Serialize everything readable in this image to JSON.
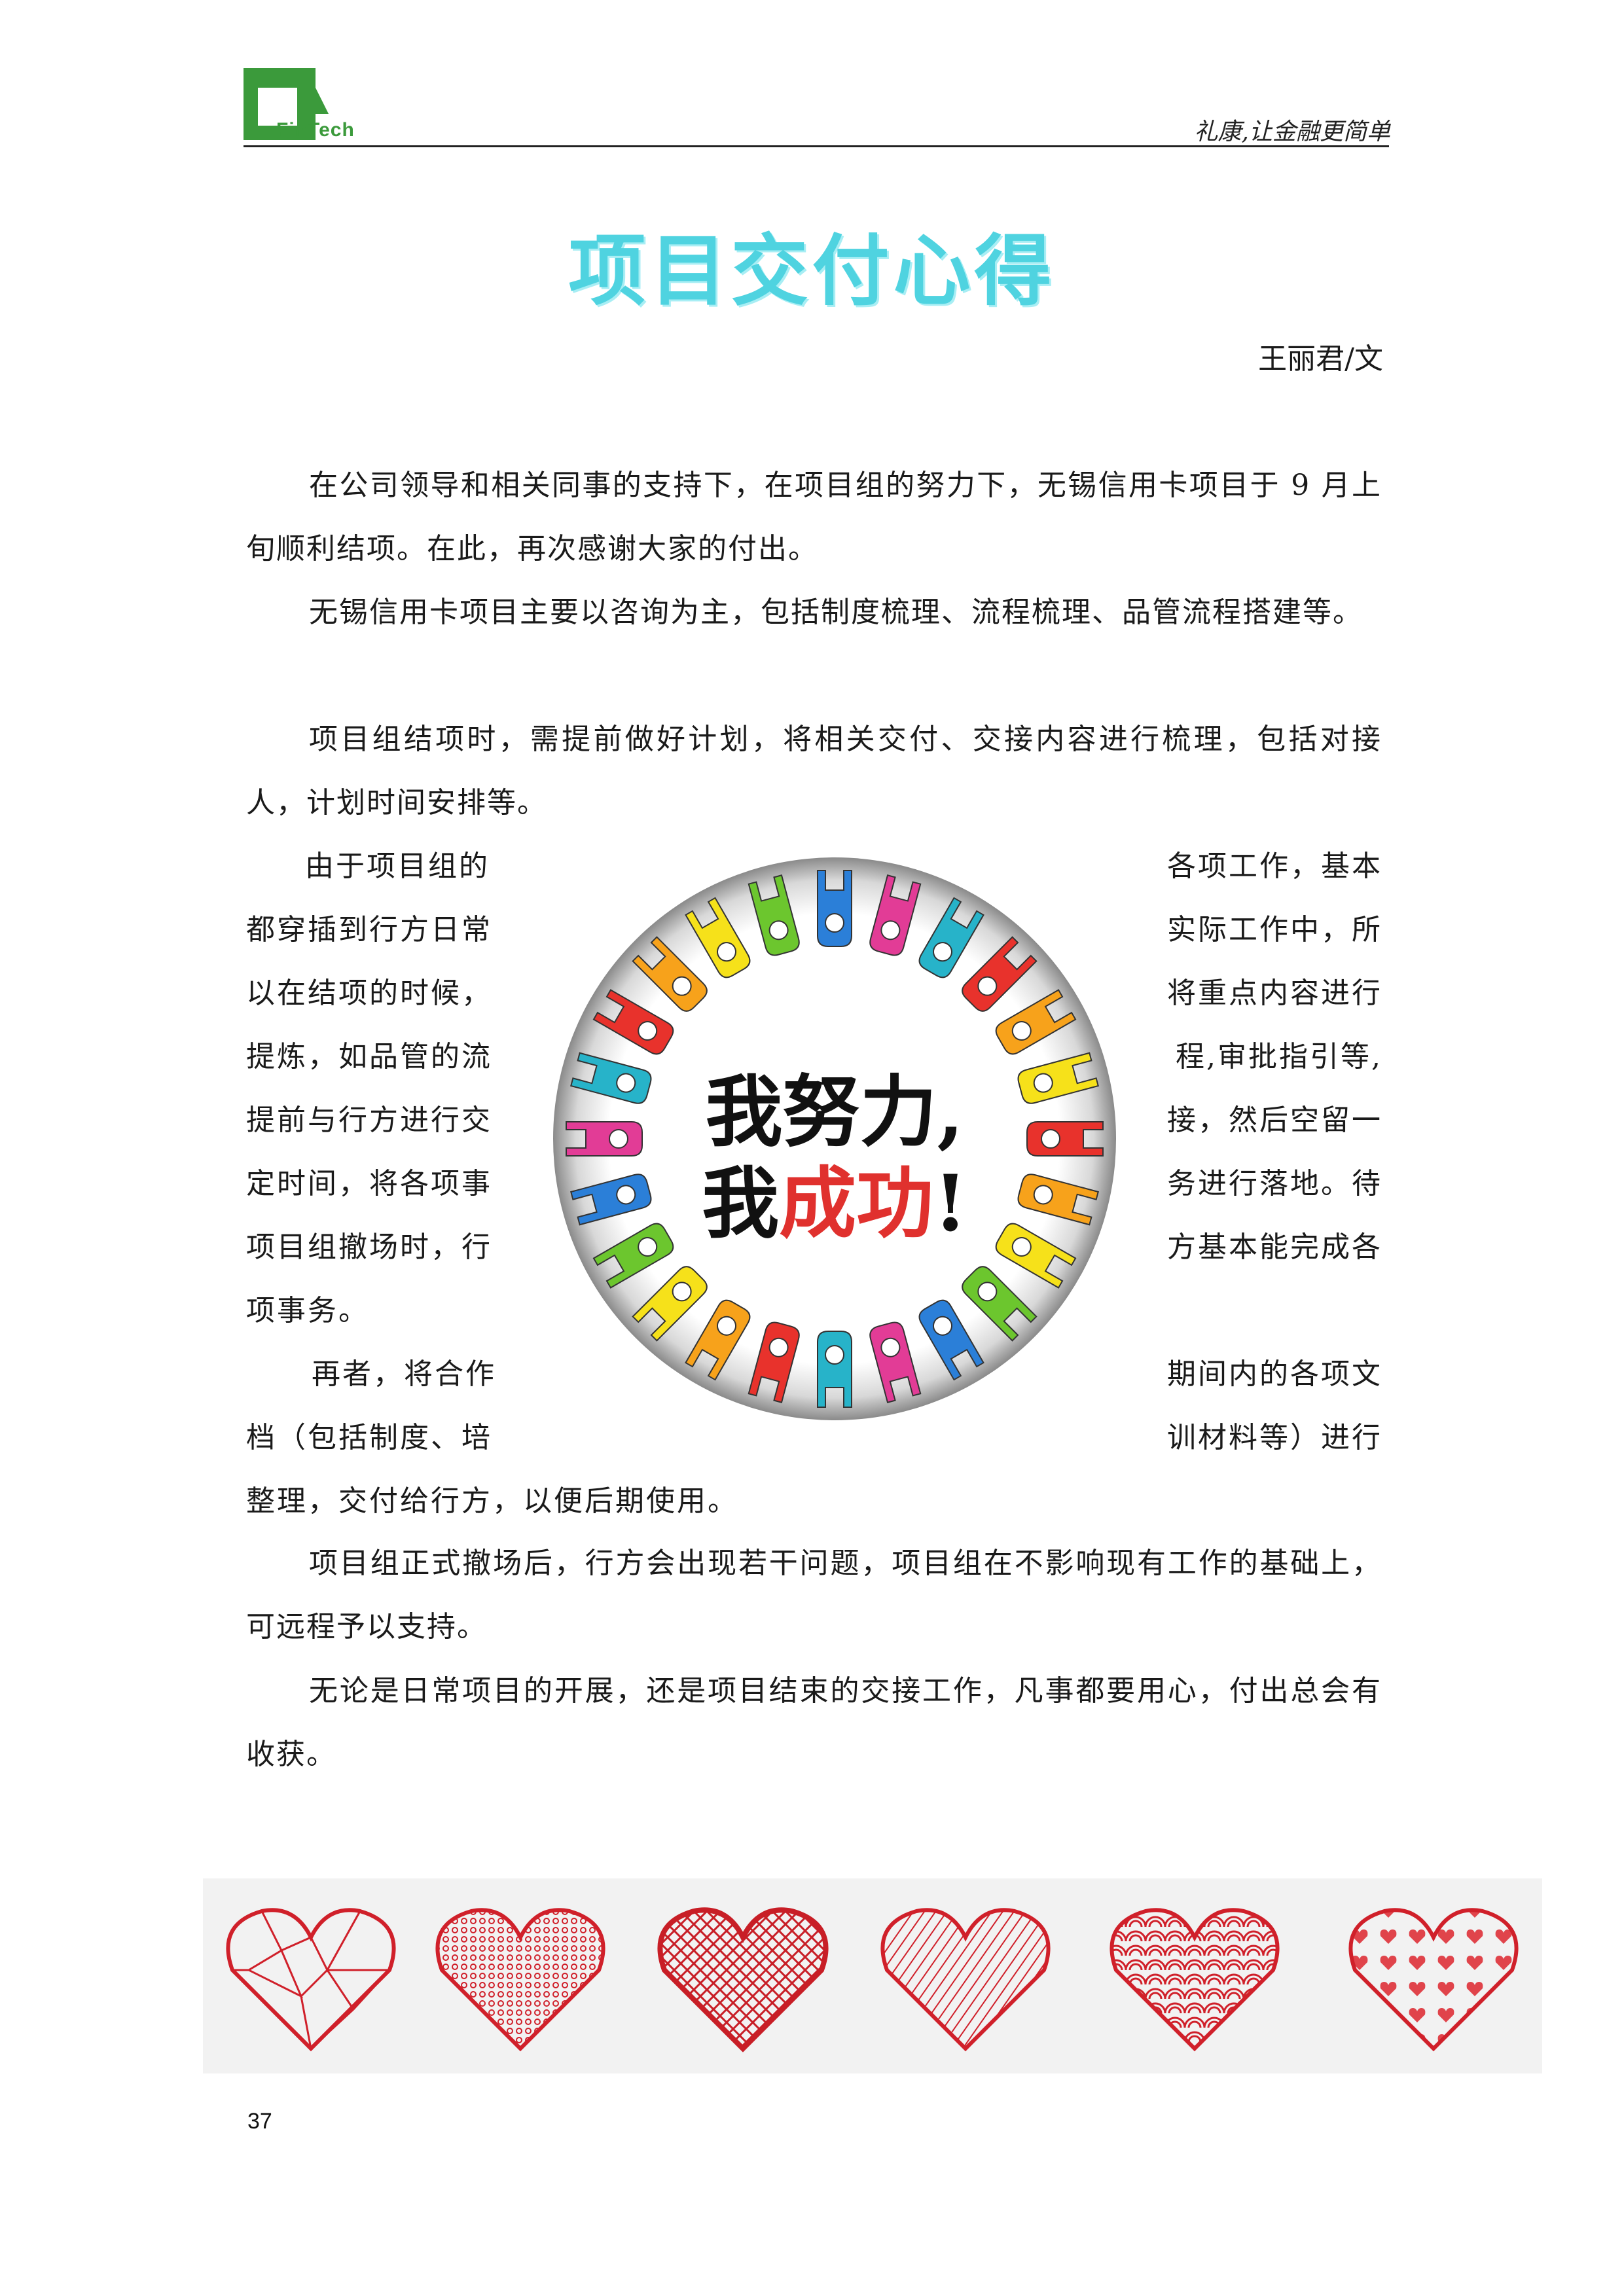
{
  "header": {
    "brand": "FinTech",
    "slogan": "礼康,让金融更简单"
  },
  "title": "项目交付心得",
  "author": "王丽君/文",
  "paragraphs": {
    "p1": "在公司领导和相关同事的支持下，在项目组的努力下，无锡信用卡项目于 9 月上旬顺利结项。在此，再次感谢大家的付出。",
    "p2": "无锡信用卡项目主要以咨询为主，包括制度梳理、流程梳理、品管流程搭建等。",
    "p3": "项目组结项时，需提前做好计划，将相关交付、交接内容进行梳理，包括对接人，计划时间安排等。",
    "p4_left": [
      "由于项目组的",
      "都穿插到行方日常",
      "以在结项的时候，",
      "提炼，如品管的流",
      "提前与行方进行交",
      "定时间，将各项事",
      "项目组撤场时，行",
      "项事务。"
    ],
    "p4_right": [
      "各项工作，基本",
      "实际工作中，所",
      "将重点内容进行",
      "程,审批指引等,",
      "接，然后空留一",
      "务进行落地。待",
      "方基本能完成各"
    ],
    "p5_left": [
      "再者，将合作",
      "档（包括制度、培"
    ],
    "p5_right": [
      "期间内的各项文",
      "训材料等）进行"
    ],
    "p5_tail": "整理，交付给行方，以便后期使用。",
    "p6": "项目组正式撤场后，行方会出现若干问题，项目组在不影响现有工作的基础上，可远程予以支持。",
    "p7": "无论是日常项目的开展，还是项目结束的交接工作，凡事都要用心，付出总会有收获。"
  },
  "badge": {
    "line1": "我努力,",
    "line2_a": "我",
    "line2_b": "成功",
    "line2_c": "!",
    "colors": [
      "#e8322c",
      "#f7a21b",
      "#f6e11a",
      "#6cc62e",
      "#2b7fd8",
      "#e23c96",
      "#27b3c9"
    ]
  },
  "hearts": {
    "color": "#d0202a",
    "icons": [
      "geometric-heart-icon",
      "dotted-heart-icon",
      "scribble-heart-icon",
      "striped-heart-icon",
      "scales-heart-icon",
      "mini-hearts-heart-icon"
    ]
  },
  "page_number": "37"
}
